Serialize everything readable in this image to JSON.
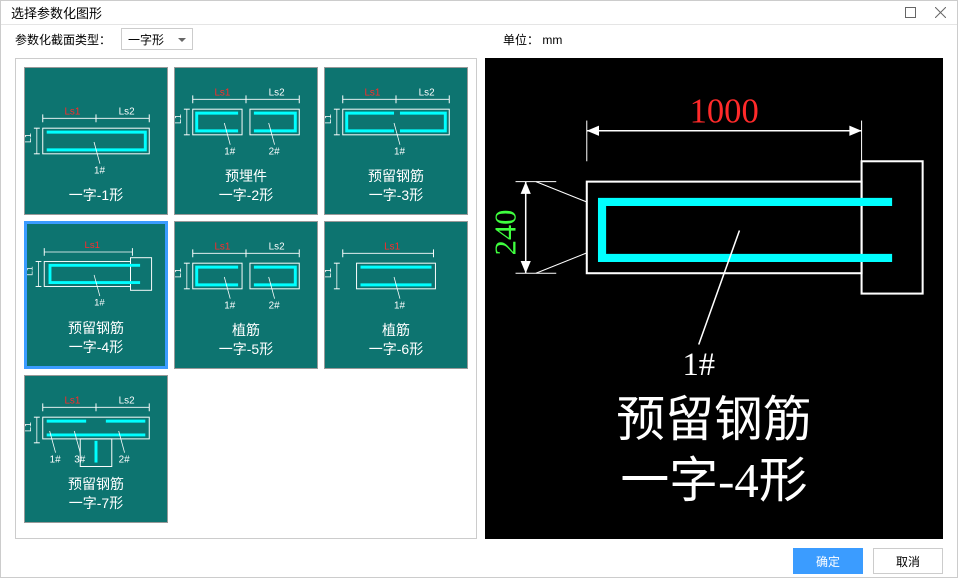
{
  "window": {
    "title": "选择参数化图形"
  },
  "toolbar": {
    "typeLabel": "参数化截面类型：",
    "typeValue": "一字形",
    "unitLabel": "单位：",
    "unitValue": "mm"
  },
  "thumbs": [
    {
      "label": "一字-1形",
      "dims": [
        "Ls1",
        "Ls2"
      ],
      "marks": [
        "1#"
      ],
      "shape": "s1"
    },
    {
      "label": "预埋件\n一字-2形",
      "dims": [
        "Ls1",
        "Ls2"
      ],
      "marks": [
        "1#",
        "2#"
      ],
      "shape": "s2"
    },
    {
      "label": "预留钢筋\n一字-3形",
      "dims": [
        "Ls1",
        "Ls2"
      ],
      "marks": [
        "1#"
      ],
      "shape": "s3"
    },
    {
      "label": "预留钢筋\n一字-4形",
      "dims": [
        "Ls1"
      ],
      "marks": [
        "1#"
      ],
      "shape": "s4",
      "selected": true
    },
    {
      "label": "植筋\n一字-5形",
      "dims": [
        "Ls1",
        "Ls2"
      ],
      "marks": [
        "1#",
        "2#"
      ],
      "shape": "s5"
    },
    {
      "label": "植筋\n一字-6形",
      "dims": [
        "Ls1"
      ],
      "marks": [
        "1#"
      ],
      "shape": "s6"
    },
    {
      "label": "预留钢筋\n一字-7形",
      "dims": [
        "Ls1",
        "Ls2"
      ],
      "marks": [
        "3#",
        "2#",
        "1#"
      ],
      "shape": "s7"
    }
  ],
  "preview": {
    "widthDim": "1000",
    "heightDim": "240",
    "mark": "1#",
    "title1": "预留钢筋",
    "title2": "一字-4形",
    "colors": {
      "dimWidth": "#ff2a2a",
      "dimHeight": "#3fff3f",
      "rebar": "#00ffff",
      "outline": "#ffffff",
      "text": "#ffffff"
    }
  },
  "footer": {
    "ok": "确定",
    "cancel": "取消"
  },
  "colors": {
    "thumbBg": "#0d7470",
    "thumbRebar": "#00ffff",
    "thumbOutline": "#ffffff",
    "thumbDim": "#ff2a2a",
    "selectedBorder": "#3b9cff"
  }
}
